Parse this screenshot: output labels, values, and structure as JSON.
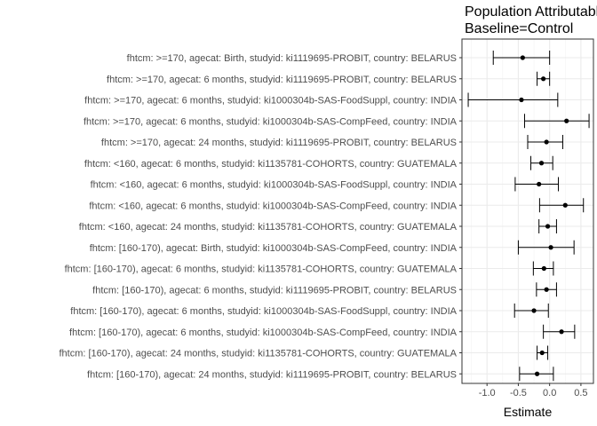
{
  "chart_data": {
    "type": "forest",
    "title": [
      "Population Attributable",
      "Baseline=Control"
    ],
    "xlabel": "Estimate",
    "ylabel": "",
    "xlim": [
      -1.4,
      0.7
    ],
    "xticks": [
      -1.0,
      -0.5,
      0.0,
      0.5
    ],
    "xtick_labels": [
      "-1.0",
      "-0.5",
      "0.0",
      "0.5"
    ],
    "grid": true,
    "rows": [
      {
        "label": "fhtcm: >=170, agecat: Birth, studyid: ki1119695-PROBIT, country: BELARUS",
        "est": -0.43,
        "lo": -0.9,
        "hi": 0.0
      },
      {
        "label": "fhtcm: >=170, agecat: 6 months, studyid: ki1119695-PROBIT, country: BELARUS",
        "est": -0.1,
        "lo": -0.2,
        "hi": 0.0
      },
      {
        "label": "fhtcm: >=170, agecat: 6 months, studyid: ki1000304b-SAS-FoodSuppl, country: INDIA",
        "est": -0.45,
        "lo": -1.3,
        "hi": 0.13
      },
      {
        "label": "fhtcm: >=170, agecat: 6 months, studyid: ki1000304b-SAS-CompFeed, country: INDIA",
        "est": 0.27,
        "lo": -0.4,
        "hi": 0.63
      },
      {
        "label": "fhtcm: >=170, agecat: 24 months, studyid: ki1119695-PROBIT, country: BELARUS",
        "est": -0.05,
        "lo": -0.35,
        "hi": 0.21
      },
      {
        "label": "fhtcm: <160, agecat: 6 months, studyid: ki1135781-COHORTS, country: GUATEMALA",
        "est": -0.13,
        "lo": -0.3,
        "hi": 0.05
      },
      {
        "label": "fhtcm: <160, agecat: 6 months, studyid: ki1000304b-SAS-FoodSuppl, country: INDIA",
        "est": -0.17,
        "lo": -0.55,
        "hi": 0.14
      },
      {
        "label": "fhtcm: <160, agecat: 6 months, studyid: ki1000304b-SAS-CompFeed, country: INDIA",
        "est": 0.25,
        "lo": -0.16,
        "hi": 0.54
      },
      {
        "label": "fhtcm: <160, agecat: 24 months, studyid: ki1135781-COHORTS, country: GUATEMALA",
        "est": -0.03,
        "lo": -0.17,
        "hi": 0.11
      },
      {
        "label": "fhtcm: [160-170), agecat: Birth, studyid: ki1000304b-SAS-CompFeed, country: INDIA",
        "est": 0.02,
        "lo": -0.5,
        "hi": 0.39
      },
      {
        "label": "fhtcm: [160-170), agecat: 6 months, studyid: ki1135781-COHORTS, country: GUATEMALA",
        "est": -0.09,
        "lo": -0.26,
        "hi": 0.06
      },
      {
        "label": "fhtcm: [160-170), agecat: 6 months, studyid: ki1119695-PROBIT, country: BELARUS",
        "est": -0.05,
        "lo": -0.21,
        "hi": 0.11
      },
      {
        "label": "fhtcm: [160-170), agecat: 6 months, studyid: ki1000304b-SAS-FoodSuppl, country: INDIA",
        "est": -0.25,
        "lo": -0.56,
        "hi": -0.02
      },
      {
        "label": "fhtcm: [160-170), agecat: 6 months, studyid: ki1000304b-SAS-CompFeed, country: INDIA",
        "est": 0.19,
        "lo": -0.1,
        "hi": 0.4
      },
      {
        "label": "fhtcm: [160-170), agecat: 24 months, studyid: ki1135781-COHORTS, country: GUATEMALA",
        "est": -0.12,
        "lo": -0.2,
        "hi": -0.03
      },
      {
        "label": "fhtcm: [160-170), agecat: 24 months, studyid: ki1119695-PROBIT, country: BELARUS",
        "est": -0.2,
        "lo": -0.48,
        "hi": 0.06
      }
    ]
  }
}
